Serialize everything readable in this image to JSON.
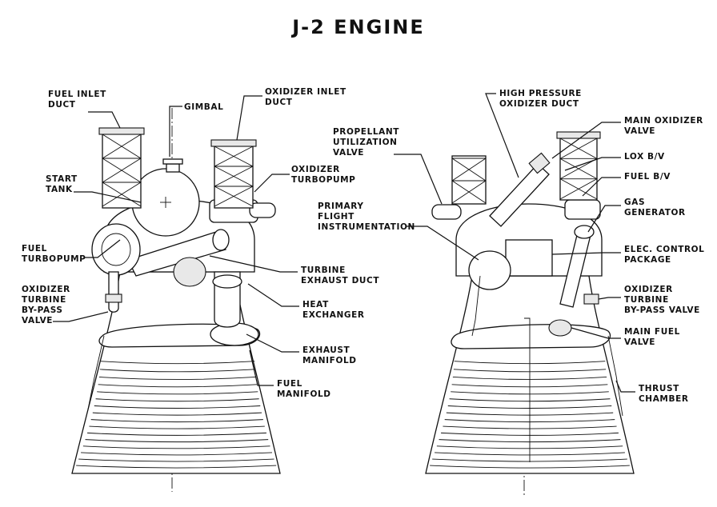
{
  "title": "J-2 ENGINE",
  "left_view": {
    "labels": {
      "fuel_inlet_duct": [
        "FUEL INLET",
        "DUCT"
      ],
      "gimbal": [
        "GIMBAL"
      ],
      "oxidizer_inlet_duct": [
        "OXIDIZER INLET",
        "DUCT"
      ],
      "start_tank": [
        "START",
        "TANK"
      ],
      "oxidizer_turbopump": [
        "OXIDIZER",
        "TURBOPUMP"
      ],
      "fuel_turbopump": [
        "FUEL",
        "TURBOPUMP"
      ],
      "turbine_exhaust_duct": [
        "TURBINE",
        "EXHAUST DUCT"
      ],
      "oxidizer_turbine_bypass_valve": [
        "OXIDIZER",
        "TURBINE",
        "BY-PASS",
        "VALVE"
      ],
      "heat_exchanger": [
        "HEAT",
        "EXCHANGER"
      ],
      "exhaust_manifold": [
        "EXHAUST",
        "MANIFOLD"
      ],
      "fuel_manifold": [
        "FUEL",
        "MANIFOLD"
      ]
    }
  },
  "right_view": {
    "labels": {
      "high_pressure_oxidizer_duct": [
        "HIGH PRESSURE",
        "OXIDIZER DUCT"
      ],
      "main_oxidizer_valve": [
        "MAIN OXIDIZER",
        "VALVE"
      ],
      "propellant_utilization_valve": [
        "PROPELLANT",
        "UTILIZATION",
        "VALVE"
      ],
      "lox_bv": [
        "LOX B/V"
      ],
      "fuel_bv": [
        "FUEL B/V"
      ],
      "gas_generator": [
        "GAS",
        "GENERATOR"
      ],
      "primary_flight_instrumentation": [
        "PRIMARY",
        "FLIGHT",
        "INSTRUMENTATION"
      ],
      "elec_control_package": [
        "ELEC. CONTROL",
        "PACKAGE"
      ],
      "oxidizer_turbine_bypass_valve": [
        "OXIDIZER",
        "TURBINE",
        "BY-PASS VALVE"
      ],
      "main_fuel_valve": [
        "MAIN FUEL",
        "VALVE"
      ],
      "thrust_chamber": [
        "THRUST",
        "CHAMBER"
      ]
    }
  },
  "icons": [
    "gimbal-icon",
    "arrowhead-icon"
  ]
}
